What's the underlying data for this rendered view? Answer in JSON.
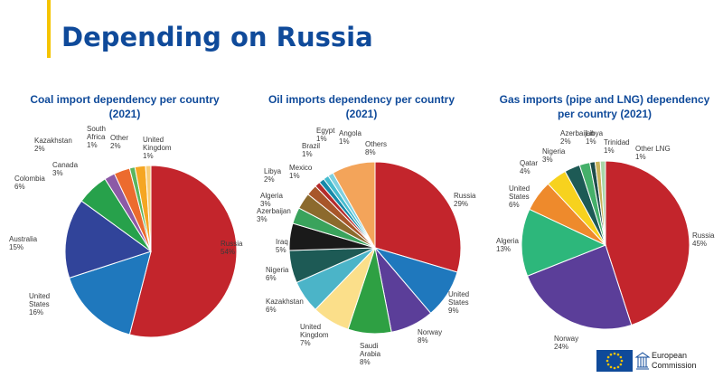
{
  "page": {
    "title": "Depending on Russia"
  },
  "footer": {
    "org_line1": "European",
    "org_line2": "Commission"
  },
  "chart_data": [
    {
      "type": "pie",
      "title_lines": [
        "Coal import dependency per country",
        "(2021)"
      ],
      "slices": [
        {
          "label": "Russia",
          "value": 54,
          "display": "54%",
          "color": "#c3252c"
        },
        {
          "label": "United States",
          "value": 16,
          "display": "16%",
          "color": "#1f78bd"
        },
        {
          "label": "Australia",
          "value": 15,
          "display": "15%",
          "color": "#31449a"
        },
        {
          "label": "Colombia",
          "value": 6,
          "display": "6%",
          "color": "#27a14b"
        },
        {
          "label": "Kazakhstan",
          "value": 2,
          "display": "2%",
          "color": "#8c5aa6"
        },
        {
          "label": "Canada",
          "value": 3,
          "display": "3%",
          "color": "#ec6b2e"
        },
        {
          "label": "South Africa",
          "value": 1,
          "display": "1%",
          "color": "#5ab55e"
        },
        {
          "label": "Other",
          "value": 2,
          "display": "2%",
          "color": "#f5a623"
        },
        {
          "label": "United Kingdom",
          "value": 1,
          "display": "1%",
          "color": "#f8cc76"
        }
      ]
    },
    {
      "type": "pie",
      "title_lines": [
        "Oil imports dependency per country",
        "(2021)"
      ],
      "slices": [
        {
          "label": "Russia",
          "value": 29,
          "display": "29%",
          "color": "#c3252c"
        },
        {
          "label": "United States",
          "value": 9,
          "display": "9%",
          "color": "#1f78bd"
        },
        {
          "label": "Norway",
          "value": 8,
          "display": "8%",
          "color": "#5b3e99"
        },
        {
          "label": "Saudi Arabia",
          "value": 8,
          "display": "8%",
          "color": "#2ea043"
        },
        {
          "label": "United Kingdom",
          "value": 7,
          "display": "7%",
          "color": "#fbdf8a"
        },
        {
          "label": "Kazakhstan",
          "value": 6,
          "display": "6%",
          "color": "#4bb4c8"
        },
        {
          "label": "Nigeria",
          "value": 6,
          "display": "6%",
          "color": "#1d5a55"
        },
        {
          "label": "Iraq",
          "value": 5,
          "display": "5%",
          "color": "#1a1a1a"
        },
        {
          "label": "Azerbaijan",
          "value": 3,
          "display": "3%",
          "color": "#3aa35c"
        },
        {
          "label": "Algeria",
          "value": 3,
          "display": "3%",
          "color": "#8c6a2d"
        },
        {
          "label": "Libya",
          "value": 2,
          "display": "2%",
          "color": "#a8562a"
        },
        {
          "label": "Mexico",
          "value": 1,
          "display": "1%",
          "color": "#b52b2b"
        },
        {
          "label": "Brazil",
          "value": 1,
          "display": "1%",
          "color": "#1789a8"
        },
        {
          "label": "Egypt",
          "value": 1,
          "display": "1%",
          "color": "#46bccf"
        },
        {
          "label": "Angola",
          "value": 1,
          "display": "1%",
          "color": "#7fd0df"
        },
        {
          "label": "Others",
          "value": 8,
          "display": "8%",
          "color": "#f3a45a"
        }
      ]
    },
    {
      "type": "pie",
      "title_lines": [
        "Gas imports (pipe and LNG) dependency",
        "per country (2021)"
      ],
      "slices": [
        {
          "label": "Russia",
          "value": 45,
          "display": "45%",
          "color": "#c3252c"
        },
        {
          "label": "Norway",
          "value": 24,
          "display": "24%",
          "color": "#5b3e99"
        },
        {
          "label": "Algeria",
          "value": 13,
          "display": "13%",
          "color": "#2db77b"
        },
        {
          "label": "United States",
          "value": 6,
          "display": "6%",
          "color": "#ee8a2c"
        },
        {
          "label": "Qatar",
          "value": 4,
          "display": "4%",
          "color": "#f7d21e"
        },
        {
          "label": "Nigeria",
          "value": 3,
          "display": "3%",
          "color": "#1d5a55"
        },
        {
          "label": "Azerbaijan",
          "value": 2,
          "display": "2%",
          "color": "#45b06a"
        },
        {
          "label": "Libya",
          "value": 1,
          "display": "1%",
          "color": "#1f4c4a"
        },
        {
          "label": "Trinidad",
          "value": 1,
          "display": "1%",
          "color": "#c9b25a"
        },
        {
          "label": "Other LNG",
          "value": 1,
          "display": "1%",
          "color": "#a9d6a9"
        }
      ]
    }
  ]
}
